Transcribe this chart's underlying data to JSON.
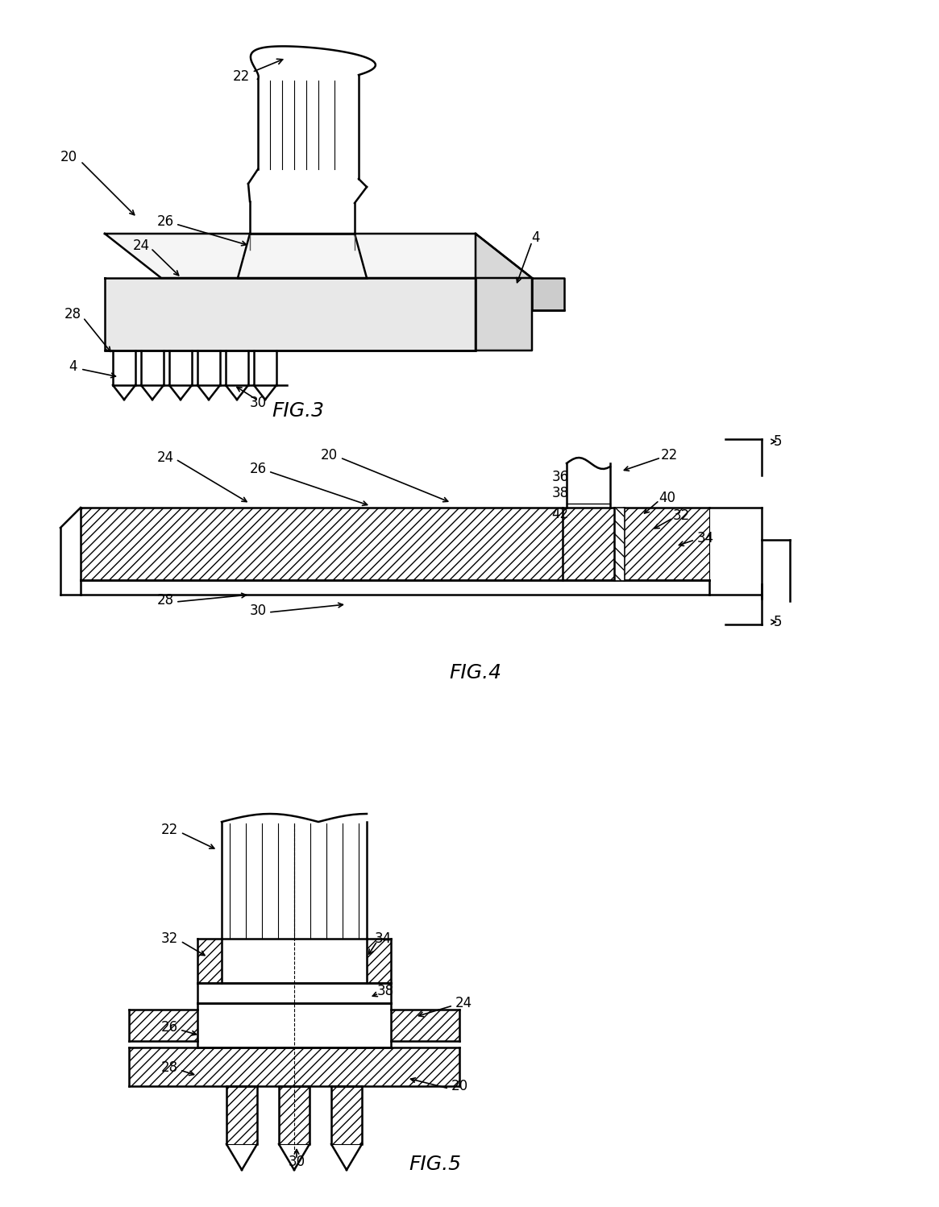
{
  "bg_color": "#ffffff",
  "line_color": "#000000",
  "fig_width": 11.65,
  "fig_height": 14.98,
  "fig3_label": "FIG.3",
  "fig4_label": "FIG.4",
  "fig5_label": "FIG.5",
  "font_size_ref": 12,
  "font_size_fig": 18
}
